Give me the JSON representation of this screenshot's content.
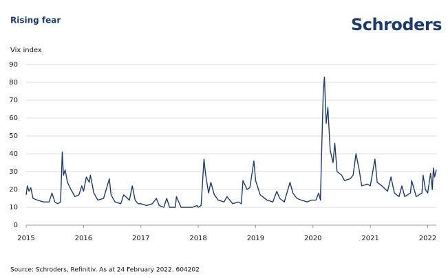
{
  "chart_data": {
    "type": "line",
    "title": "Rising fear",
    "logo": "Schroders",
    "y_label": "Vix index",
    "source": "Source: Schroders, Refinitiv. As at 24 February 2022. 604202",
    "xlim": [
      2015,
      2022.15
    ],
    "xticks": [
      2015,
      2016,
      2017,
      2018,
      2019,
      2020,
      2021,
      2022
    ],
    "ylim": [
      0,
      90
    ],
    "yticks": [
      0,
      10,
      20,
      30,
      40,
      50,
      60,
      70,
      80,
      90
    ],
    "grid": true,
    "x": [
      2015.0,
      2015.02,
      2015.05,
      2015.08,
      2015.12,
      2015.2,
      2015.3,
      2015.4,
      2015.45,
      2015.5,
      2015.55,
      2015.6,
      2015.63,
      2015.65,
      2015.68,
      2015.72,
      2015.78,
      2015.85,
      2015.92,
      2015.97,
      2016.0,
      2016.05,
      2016.1,
      2016.12,
      2016.18,
      2016.25,
      2016.35,
      2016.45,
      2016.48,
      2016.55,
      2016.65,
      2016.7,
      2016.8,
      2016.85,
      2016.9,
      2016.95,
      2017.0,
      2017.1,
      2017.2,
      2017.27,
      2017.32,
      2017.4,
      2017.45,
      2017.5,
      2017.6,
      2017.62,
      2017.7,
      2017.8,
      2017.9,
      2017.98,
      2018.0,
      2018.05,
      2018.1,
      2018.13,
      2018.18,
      2018.22,
      2018.28,
      2018.35,
      2018.45,
      2018.5,
      2018.6,
      2018.7,
      2018.75,
      2018.78,
      2018.85,
      2018.9,
      2018.97,
      2019.0,
      2019.08,
      2019.2,
      2019.3,
      2019.37,
      2019.42,
      2019.5,
      2019.6,
      2019.65,
      2019.72,
      2019.8,
      2019.9,
      2019.97,
      2020.05,
      2020.1,
      2020.13,
      2020.15,
      2020.18,
      2020.2,
      2020.23,
      2020.26,
      2020.3,
      2020.35,
      2020.38,
      2020.42,
      2020.5,
      2020.55,
      2020.65,
      2020.7,
      2020.75,
      2020.8,
      2020.85,
      2020.95,
      2021.0,
      2021.08,
      2021.12,
      2021.2,
      2021.3,
      2021.36,
      2021.42,
      2021.5,
      2021.55,
      2021.6,
      2021.7,
      2021.72,
      2021.8,
      2021.9,
      2021.92,
      2021.96,
      2022.0,
      2022.05,
      2022.08,
      2022.1,
      2022.12,
      2022.15
    ],
    "series": [
      {
        "name": "Vix index",
        "color": "#1b3a6e",
        "values": [
          17,
          22,
          19,
          21,
          15,
          14,
          13,
          13,
          18,
          13,
          12,
          13,
          41,
          28,
          31,
          24,
          20,
          16,
          17,
          22,
          19,
          27,
          24,
          28,
          18,
          14,
          15,
          26,
          17,
          13,
          12,
          17,
          14,
          22,
          14,
          12,
          12,
          11,
          12,
          15,
          11,
          10,
          15,
          10,
          10,
          16,
          10,
          10,
          10,
          11,
          10,
          11,
          37,
          28,
          18,
          24,
          17,
          14,
          13,
          16,
          12,
          13,
          12,
          25,
          20,
          21,
          36,
          25,
          17,
          14,
          13,
          19,
          15,
          13,
          24,
          18,
          15,
          14,
          13,
          14,
          14,
          18,
          14,
          40,
          75,
          83,
          57,
          66,
          42,
          35,
          46,
          30,
          28,
          25,
          26,
          28,
          40,
          32,
          22,
          23,
          22,
          37,
          24,
          22,
          19,
          27,
          18,
          16,
          22,
          16,
          18,
          25,
          16,
          18,
          28,
          20,
          18,
          29,
          20,
          32,
          27,
          31
        ]
      }
    ]
  }
}
